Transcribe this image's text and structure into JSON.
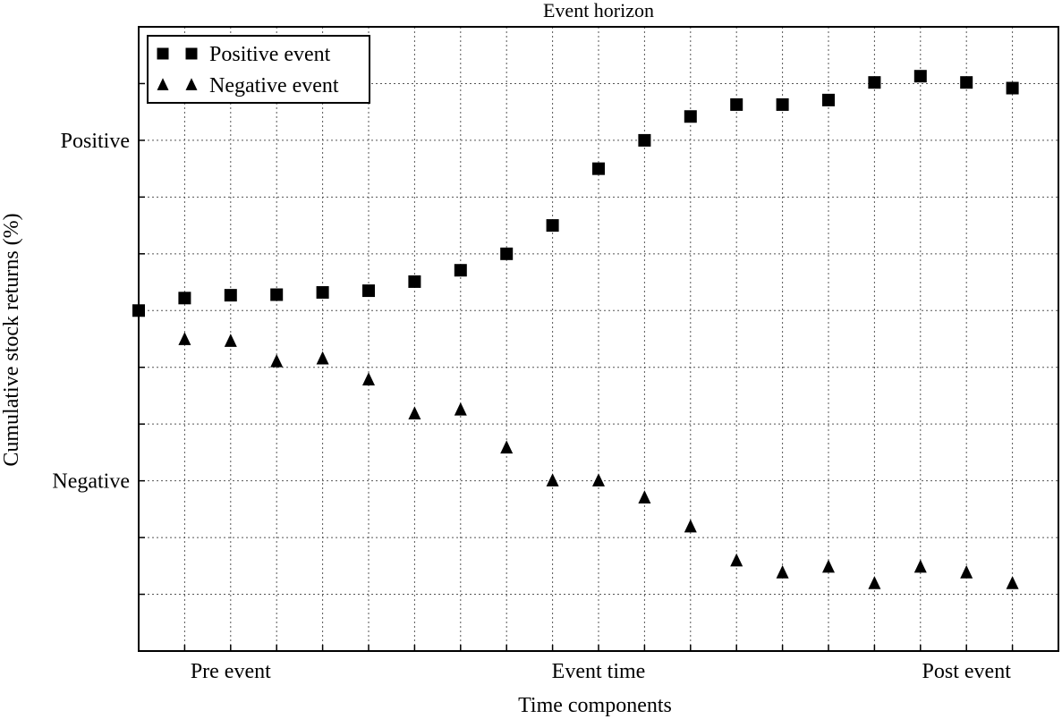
{
  "chart_data": {
    "type": "scatter",
    "title": "Event horizon",
    "xlabel": "Time components",
    "ylabel": "Cumulative stock returns (%)",
    "xlim": [
      0,
      20
    ],
    "ylim": [
      -6,
      5
    ],
    "grid": true,
    "legend_position": "top-left",
    "x_tick_labels": [
      {
        "x": 2,
        "label": "Pre event"
      },
      {
        "x": 10,
        "label": "Event time"
      },
      {
        "x": 18,
        "label": "Post event"
      }
    ],
    "y_tick_labels": [
      {
        "y": 3,
        "label": "Positive"
      },
      {
        "y": -3,
        "label": "Negative"
      }
    ],
    "series": [
      {
        "name": "Positive event",
        "marker": "square",
        "x": [
          0,
          1,
          2,
          3,
          4,
          5,
          6,
          7,
          8,
          9,
          10,
          11,
          12,
          13,
          14,
          15,
          16,
          17,
          18,
          19
        ],
        "y": [
          0,
          0.22,
          0.27,
          0.28,
          0.32,
          0.35,
          0.51,
          0.71,
          1.0,
          1.5,
          2.5,
          3.0,
          3.42,
          3.63,
          3.63,
          3.71,
          4.02,
          4.13,
          4.02,
          3.92
        ]
      },
      {
        "name": "Negative event",
        "marker": "triangle",
        "x": [
          1,
          2,
          3,
          4,
          5,
          6,
          7,
          8,
          9,
          10,
          11,
          12,
          13,
          14,
          15,
          16,
          17,
          18,
          19
        ],
        "y": [
          -0.51,
          -0.54,
          -0.9,
          -0.85,
          -1.22,
          -1.82,
          -1.75,
          -2.42,
          -3.0,
          -3.0,
          -3.3,
          -3.81,
          -4.41,
          -4.62,
          -4.52,
          -4.81,
          -4.52,
          -4.62,
          -4.81
        ]
      }
    ]
  }
}
